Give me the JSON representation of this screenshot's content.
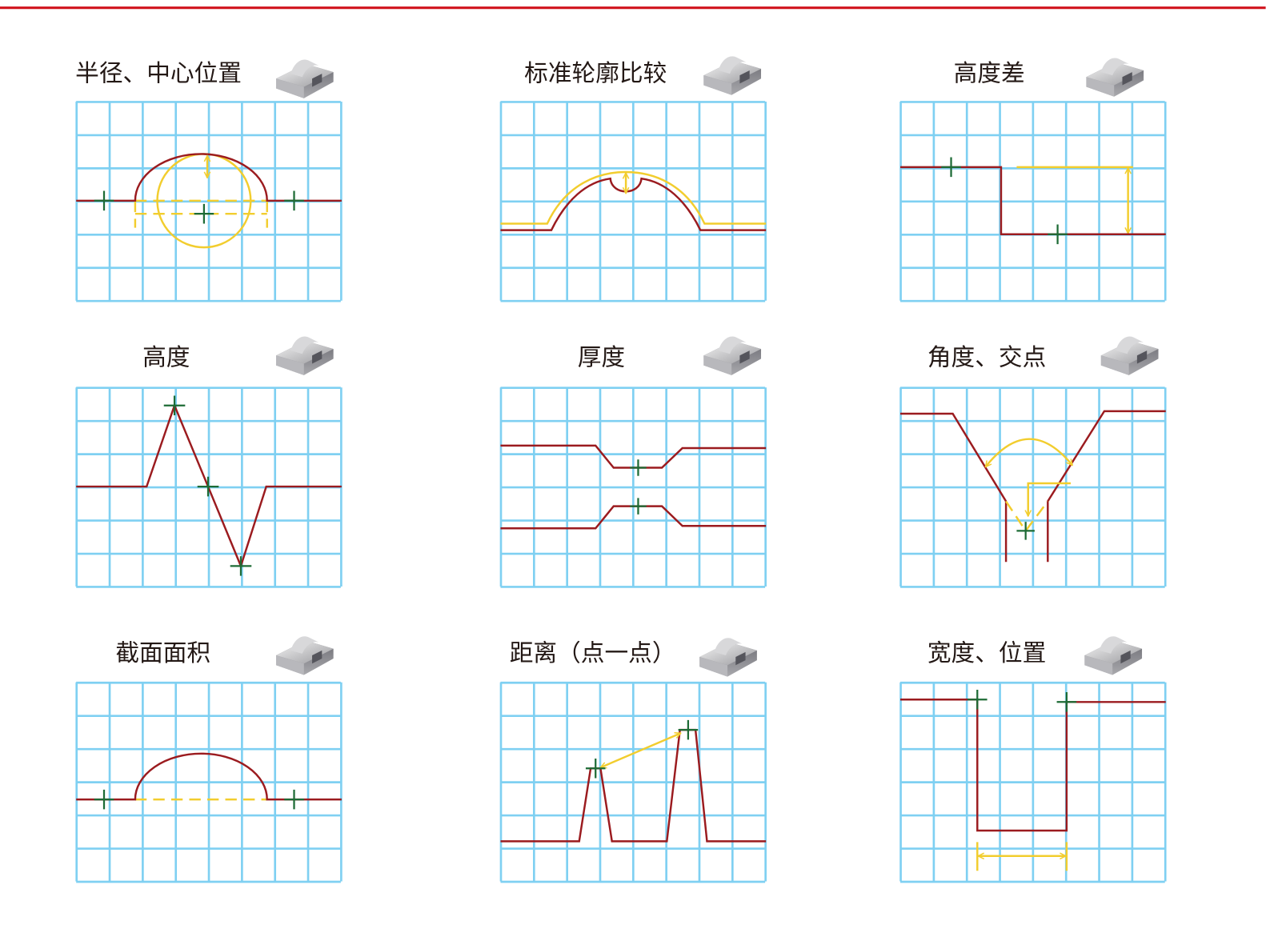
{
  "colors": {
    "accent_bar": "#d0101a",
    "grid": "#7fd0f2",
    "profile": "#9b1b1f",
    "measure": "#f2cd2e",
    "point_marker": "#1d6b35"
  },
  "panels": [
    {
      "title": "半径、中心位置",
      "icon": "workpiece-round-groove-icon"
    },
    {
      "title": "标准轮廓比较",
      "icon": "workpiece-round-groove-icon"
    },
    {
      "title": "高度差",
      "icon": "workpiece-step-icon"
    },
    {
      "title": "高度",
      "icon": "workpiece-step-icon"
    },
    {
      "title": "厚度",
      "icon": "workpiece-groove-icon"
    },
    {
      "title": "角度、交点",
      "icon": "workpiece-blocks-icon"
    },
    {
      "title": "截面面积",
      "icon": "workpiece-round-groove-icon"
    },
    {
      "title": "距离（点一点）",
      "icon": "workpiece-ridges-icon"
    },
    {
      "title": "宽度、位置",
      "icon": "workpiece-groove-icon"
    }
  ]
}
